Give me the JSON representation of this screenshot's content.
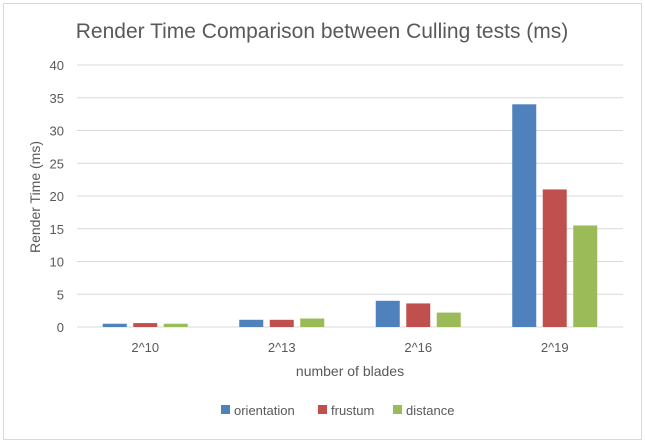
{
  "chart_data": {
    "type": "bar",
    "title": "Render Time Comparison between Culling tests (ms)",
    "xlabel": "number of blades",
    "ylabel": "Render Time (ms)",
    "categories": [
      "2^10",
      "2^13",
      "2^16",
      "2^19"
    ],
    "series": [
      {
        "name": "orientation",
        "color": "#4f81bd",
        "values": [
          0.5,
          1.1,
          4.0,
          34.0
        ]
      },
      {
        "name": "frustum",
        "color": "#c0504d",
        "values": [
          0.6,
          1.1,
          3.6,
          21.0
        ]
      },
      {
        "name": "distance",
        "color": "#9bbb59",
        "values": [
          0.5,
          1.3,
          2.2,
          15.5
        ]
      }
    ],
    "ylim": [
      0,
      40
    ],
    "yticks": [
      0,
      5,
      10,
      15,
      20,
      25,
      30,
      35,
      40
    ],
    "grid": true,
    "legend_position": "bottom"
  }
}
